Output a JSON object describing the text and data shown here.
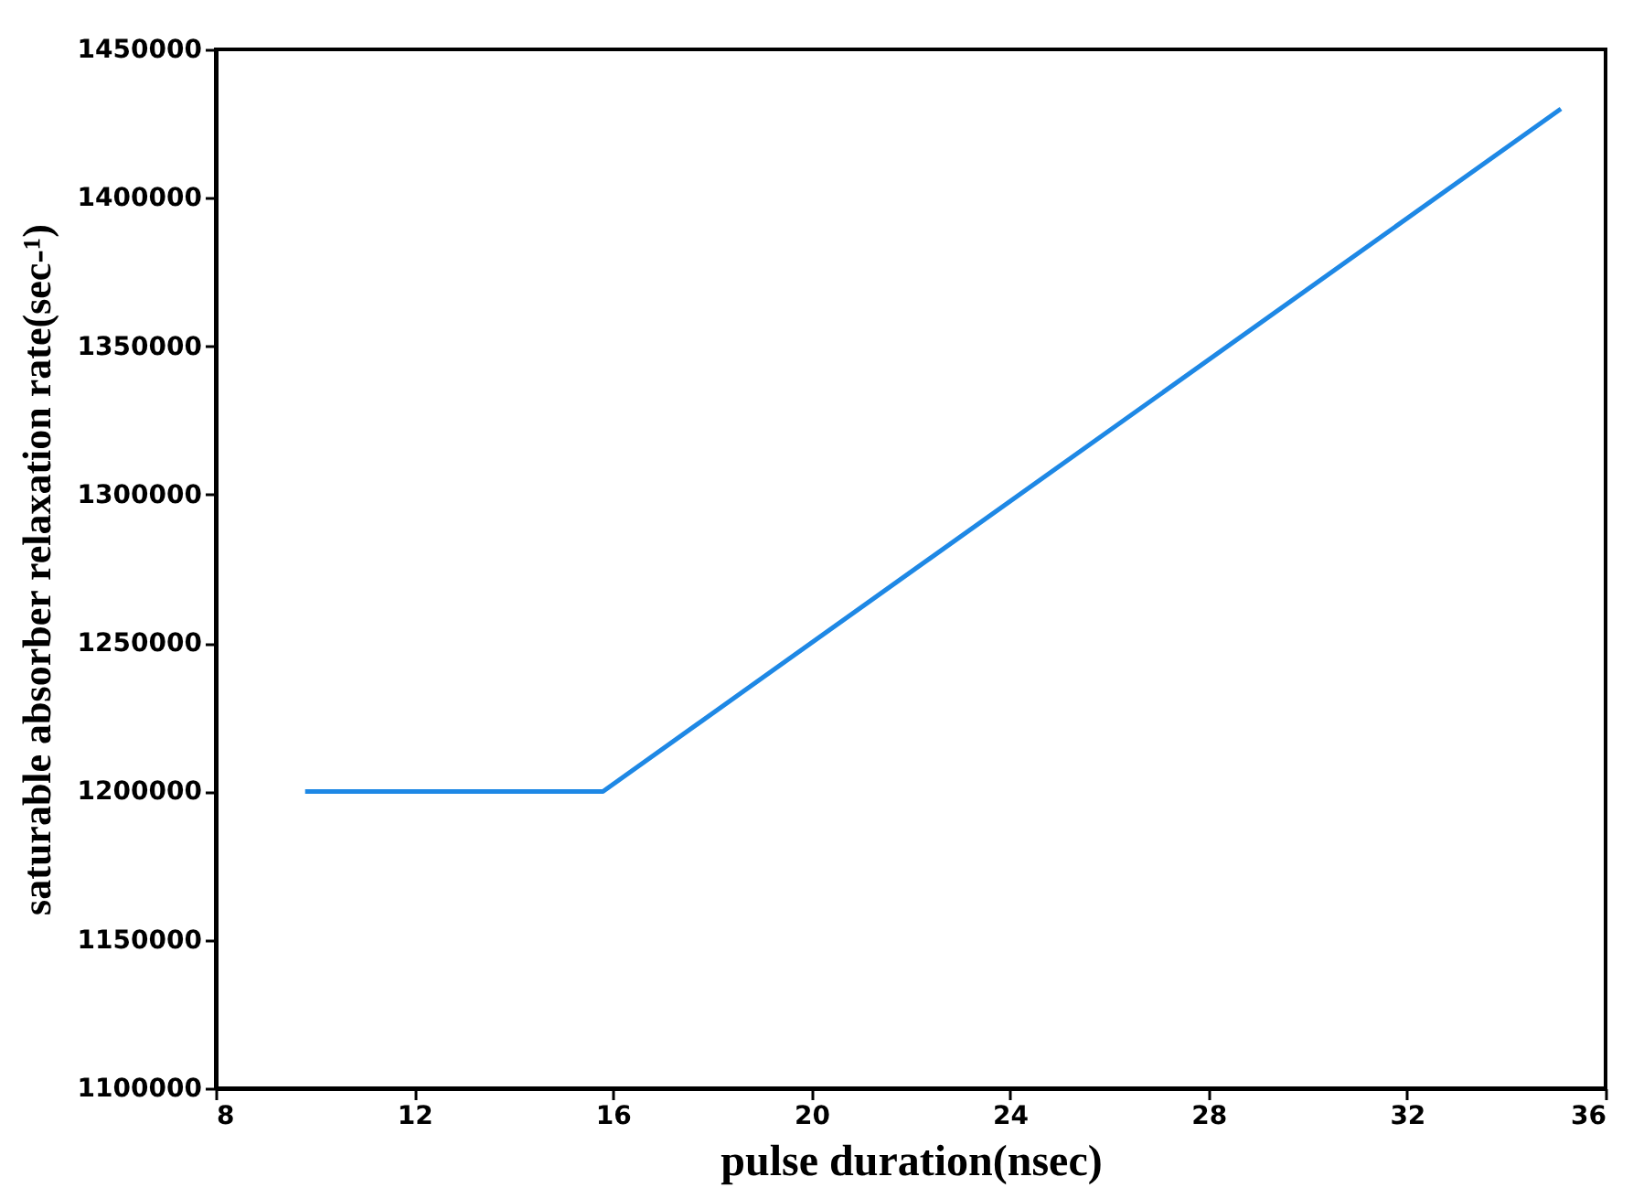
{
  "chart_data": {
    "type": "line",
    "xlabel": "pulse duration(nsec)",
    "ylabel": "saturable absorber relaxation rate(sec-¹)",
    "x": [
      9.8,
      15.8,
      35.1
    ],
    "series": [
      {
        "color": "#1e88e5",
        "values": [
          1200000,
          1200000,
          1430000
        ]
      }
    ],
    "xlim": [
      8,
      36
    ],
    "xticks": [
      8,
      12,
      16,
      20,
      24,
      28,
      32,
      36
    ],
    "ylim": [
      1100000,
      1450000
    ],
    "yticks": [
      1100000,
      1150000,
      1200000,
      1250000,
      1300000,
      1350000,
      1400000,
      1450000
    ],
    "grid": false,
    "legend": false,
    "marker": "none",
    "line_style": "solid"
  }
}
